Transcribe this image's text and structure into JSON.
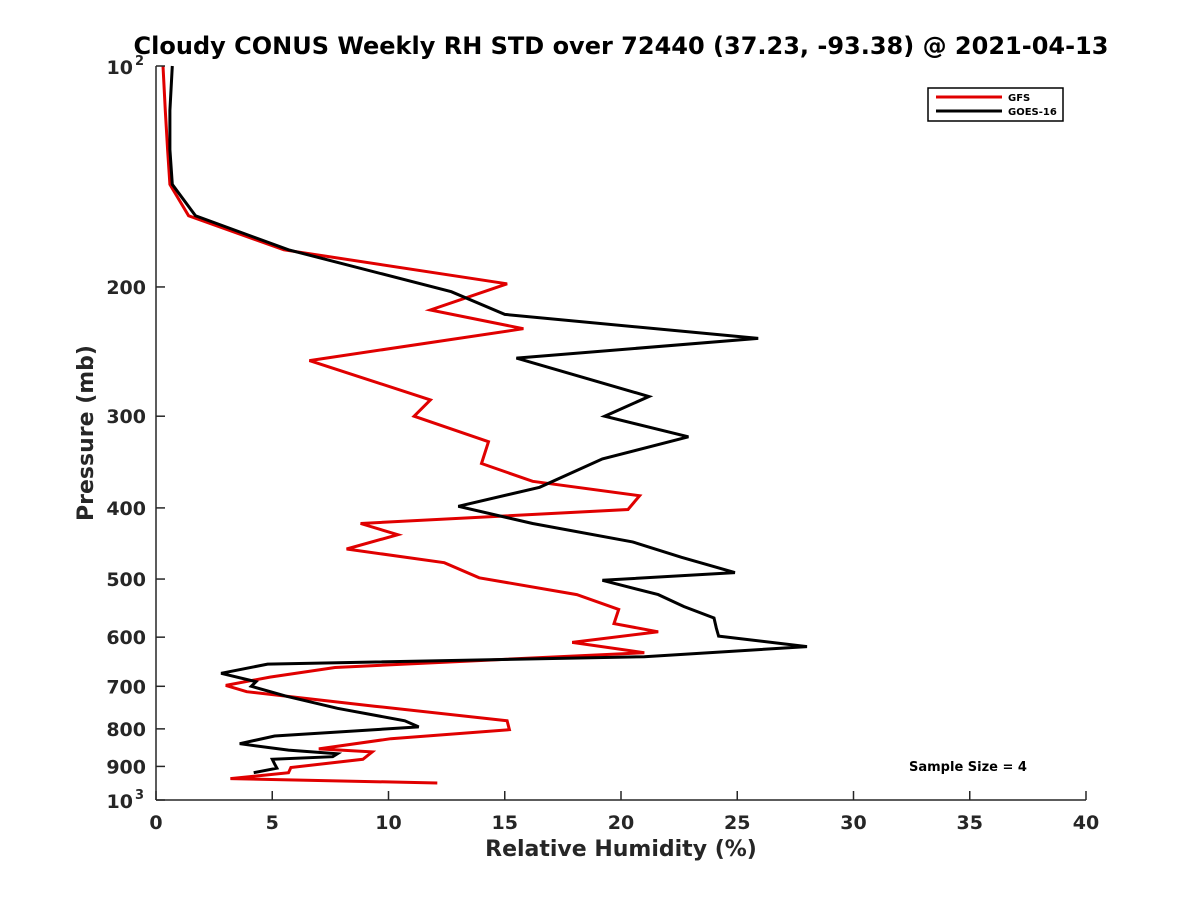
{
  "chart_data": {
    "type": "line",
    "title": "Cloudy CONUS Weekly RH STD over 72440 (37.23, -93.38) @ 2021-04-13",
    "xlabel": "Relative Humidity (%)",
    "ylabel": "Pressure (mb)",
    "xlim": [
      0,
      40
    ],
    "ylim": [
      100,
      1000
    ],
    "yscale": "log",
    "y_reversed": true,
    "x_ticks": [
      0,
      5,
      10,
      15,
      20,
      25,
      30,
      35,
      40
    ],
    "y_ticks": [
      {
        "value": 100,
        "label": "10",
        "sup": "2"
      },
      {
        "value": 200,
        "label": "200"
      },
      {
        "value": 300,
        "label": "300"
      },
      {
        "value": 400,
        "label": "400"
      },
      {
        "value": 500,
        "label": "500"
      },
      {
        "value": 600,
        "label": "600"
      },
      {
        "value": 700,
        "label": "700"
      },
      {
        "value": 800,
        "label": "800"
      },
      {
        "value": 900,
        "label": "900"
      },
      {
        "value": 1000,
        "label": "10",
        "sup": "3"
      }
    ],
    "grid": false,
    "legend_position": "top-right",
    "annotation": "Sample Size = 4",
    "series": [
      {
        "name": "GFS",
        "color": "#e00000",
        "x": [
          0.3,
          0.4,
          0.5,
          0.6,
          1.4,
          5.5,
          15.1,
          11.8,
          15.8,
          6.6,
          11.8,
          11.1,
          14.3,
          14.0,
          16.2,
          20.8,
          20.3,
          8.8,
          10.4,
          8.2,
          12.4,
          13.9,
          18.1,
          19.9,
          19.7,
          21.6,
          17.9,
          21.0,
          14.2,
          7.7,
          4.9,
          3.0,
          3.9,
          9.4,
          15.1,
          15.2,
          10.1,
          7.0,
          9.3,
          8.9,
          5.8,
          5.7,
          3.2,
          12.1
        ],
        "y": [
          100,
          115,
          130,
          145,
          160,
          178,
          198,
          215,
          228,
          252,
          285,
          300,
          325,
          348,
          368,
          385,
          402,
          420,
          435,
          455,
          475,
          498,
          525,
          550,
          575,
          590,
          610,
          630,
          645,
          660,
          680,
          698,
          712,
          745,
          780,
          802,
          825,
          852,
          860,
          880,
          903,
          918,
          935,
          948
        ]
      },
      {
        "name": "GOES-16",
        "color": "#000000",
        "x": [
          0.7,
          0.6,
          0.6,
          0.7,
          1.7,
          5.7,
          12.7,
          15.0,
          25.9,
          15.5,
          21.2,
          19.3,
          22.9,
          19.2,
          16.5,
          13.0,
          16.2,
          20.5,
          22.6,
          24.9,
          19.2,
          21.6,
          22.7,
          24.0,
          24.1,
          24.2,
          28.0,
          21.0,
          4.8,
          2.8,
          4.3,
          4.1,
          5.6,
          7.8,
          10.7,
          11.3,
          5.1,
          3.6,
          5.7,
          7.8,
          7.6,
          5.0,
          5.1,
          5.2,
          4.2
        ],
        "y": [
          100,
          115,
          130,
          145,
          160,
          178,
          203,
          218,
          235,
          250,
          282,
          300,
          320,
          343,
          375,
          398,
          420,
          445,
          467,
          490,
          502,
          525,
          545,
          565,
          583,
          598,
          618,
          638,
          653,
          672,
          690,
          700,
          722,
          750,
          780,
          795,
          818,
          838,
          855,
          865,
          873,
          880,
          893,
          905,
          918
        ]
      }
    ]
  }
}
